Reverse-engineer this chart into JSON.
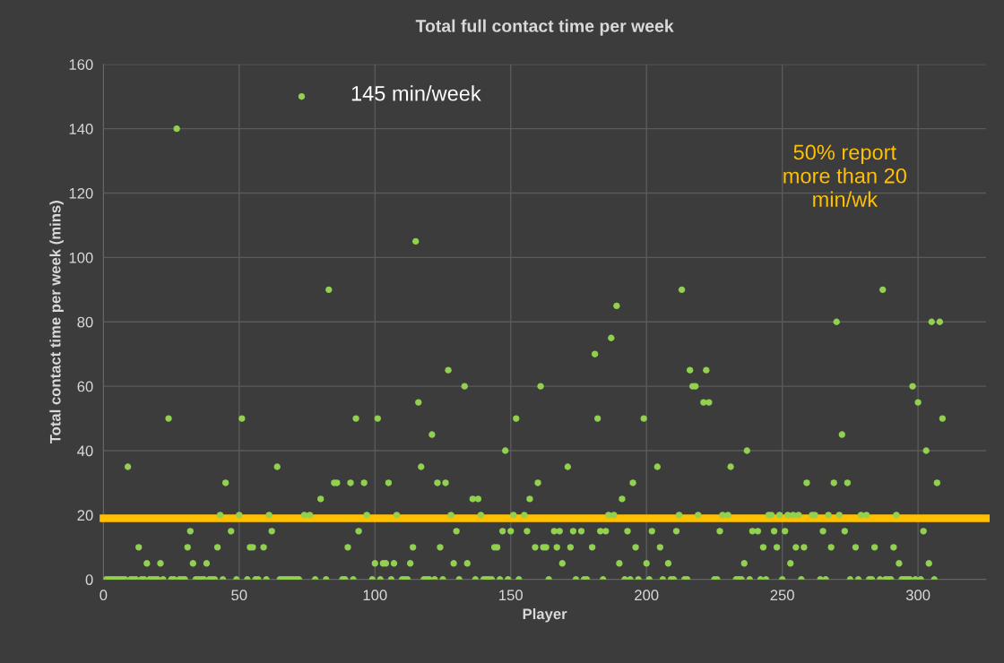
{
  "chart_data": {
    "type": "scatter",
    "title": "Total full contact time per week",
    "xlabel": "Player",
    "ylabel": "Total contact time per week (mins)",
    "xlim": [
      0,
      325
    ],
    "xticks": [
      0,
      50,
      100,
      150,
      200,
      250,
      300
    ],
    "ylim": [
      0,
      160
    ],
    "yticks": [
      0,
      20,
      40,
      60,
      80,
      100,
      120,
      140,
      160
    ],
    "grid": true,
    "marker": "circle",
    "series": [
      {
        "color": "#92d050",
        "x": [
          16,
          21,
          33,
          38,
          13,
          31,
          42,
          54,
          55,
          59,
          32,
          47,
          62,
          43,
          50,
          61,
          74,
          76,
          80,
          45,
          9,
          64,
          24,
          51,
          27,
          73,
          115,
          83,
          127,
          133,
          161,
          116,
          93,
          101,
          152,
          121,
          148,
          117,
          85,
          86,
          91,
          96,
          105,
          123,
          126,
          160,
          136,
          138,
          157,
          97,
          108,
          128,
          139,
          151,
          155,
          94,
          130,
          147,
          150,
          156,
          90,
          114,
          124,
          144,
          145,
          159,
          162,
          100,
          103,
          104,
          107,
          113,
          129,
          134
        ],
        "values": [
          5,
          5,
          5,
          5,
          10,
          10,
          10,
          10,
          10,
          10,
          15,
          15,
          15,
          20,
          20,
          20,
          20,
          20,
          25,
          30,
          35,
          35,
          50,
          50,
          140,
          150,
          105,
          90,
          65,
          60,
          60,
          55,
          50,
          50,
          50,
          45,
          40,
          35,
          30,
          30,
          30,
          30,
          30,
          30,
          30,
          30,
          25,
          25,
          25,
          20,
          20,
          20,
          20,
          20,
          20,
          15,
          15,
          15,
          15,
          15,
          10,
          10,
          10,
          10,
          10,
          10,
          10,
          5,
          5,
          5,
          5,
          5,
          5,
          5
        ]
      },
      {
        "color": "#92d050",
        "x": [
          213,
          189,
          187,
          181,
          216,
          222,
          217,
          218,
          221,
          223,
          182,
          199,
          237,
          171,
          204,
          231,
          195,
          191,
          186,
          188,
          212,
          219,
          228,
          230,
          166,
          168,
          173,
          176,
          183,
          185,
          193,
          202,
          211,
          227,
          239,
          241,
          163,
          167,
          172,
          180,
          196,
          205,
          243,
          169,
          190,
          200,
          208,
          236
        ],
        "values": [
          90,
          85,
          75,
          70,
          65,
          65,
          60,
          60,
          55,
          55,
          50,
          50,
          40,
          35,
          35,
          35,
          30,
          25,
          20,
          20,
          20,
          20,
          20,
          20,
          15,
          15,
          15,
          15,
          15,
          15,
          15,
          15,
          15,
          15,
          15,
          15,
          10,
          10,
          10,
          10,
          10,
          10,
          10,
          5,
          5,
          5,
          5,
          5
        ]
      },
      {
        "color": "#92d050",
        "x": [
          287,
          270,
          305,
          308,
          298,
          300,
          309,
          272,
          303,
          259,
          269,
          274,
          307,
          245,
          246,
          249,
          252,
          254,
          256,
          261,
          262,
          267,
          271,
          279,
          281,
          292,
          247,
          251,
          265,
          273,
          302,
          248,
          255,
          258,
          268,
          277,
          284,
          291,
          253,
          293,
          304
        ],
        "values": [
          90,
          80,
          80,
          80,
          60,
          55,
          50,
          45,
          40,
          30,
          30,
          30,
          30,
          20,
          20,
          20,
          20,
          20,
          20,
          20,
          20,
          20,
          20,
          20,
          20,
          20,
          15,
          15,
          15,
          15,
          15,
          10,
          10,
          10,
          10,
          10,
          10,
          10,
          5,
          5,
          5
        ]
      },
      {
        "color": "#92d050",
        "x": [
          1,
          2,
          3,
          4,
          5,
          6,
          7,
          8,
          10,
          11,
          12,
          14,
          15,
          17,
          18,
          19,
          20,
          22,
          25,
          26,
          28,
          29,
          30,
          34,
          35,
          36,
          37,
          39,
          40,
          41,
          44,
          49,
          53,
          56,
          57,
          60,
          65,
          66,
          67,
          68,
          69,
          70,
          71,
          72,
          78,
          82,
          88,
          89,
          92,
          99,
          102,
          106,
          110,
          111,
          112,
          118,
          119,
          120,
          122,
          125,
          131,
          137,
          140,
          141,
          142,
          143,
          146,
          149,
          153,
          164,
          174,
          177,
          178,
          184,
          192,
          194,
          197,
          201,
          206,
          209,
          210,
          214,
          215,
          225,
          226,
          233,
          234,
          235,
          238,
          242,
          244,
          250,
          257,
          264,
          266,
          275,
          278,
          282,
          283,
          286,
          288,
          289,
          290,
          294,
          295,
          296,
          297,
          299,
          301,
          306
        ],
        "values": [
          0,
          0,
          0,
          0,
          0,
          0,
          0,
          0,
          0,
          0,
          0,
          0,
          0,
          0,
          0,
          0,
          0,
          0,
          0,
          0,
          0,
          0,
          0,
          0,
          0,
          0,
          0,
          0,
          0,
          0,
          0,
          0,
          0,
          0,
          0,
          0,
          0,
          0,
          0,
          0,
          0,
          0,
          0,
          0,
          0,
          0,
          0,
          0,
          0,
          0,
          0,
          0,
          0,
          0,
          0,
          0,
          0,
          0,
          0,
          0,
          0,
          0,
          0,
          0,
          0,
          0,
          0,
          0,
          0,
          0,
          0,
          0,
          0,
          0,
          0,
          0,
          0,
          0,
          0,
          0,
          0,
          0,
          0,
          0,
          0,
          0,
          0,
          0,
          0,
          0,
          0,
          0,
          0,
          0,
          0,
          0,
          0,
          0,
          0,
          0,
          0,
          0,
          0,
          0,
          0,
          0,
          0,
          0,
          0,
          0
        ]
      }
    ],
    "ref_lines": [
      {
        "axis": "y",
        "value": 19,
        "label": "50% report\nmore than 20\nmin/wk",
        "color": "#ffc000"
      }
    ],
    "annotations": [
      "145 min/week"
    ]
  }
}
